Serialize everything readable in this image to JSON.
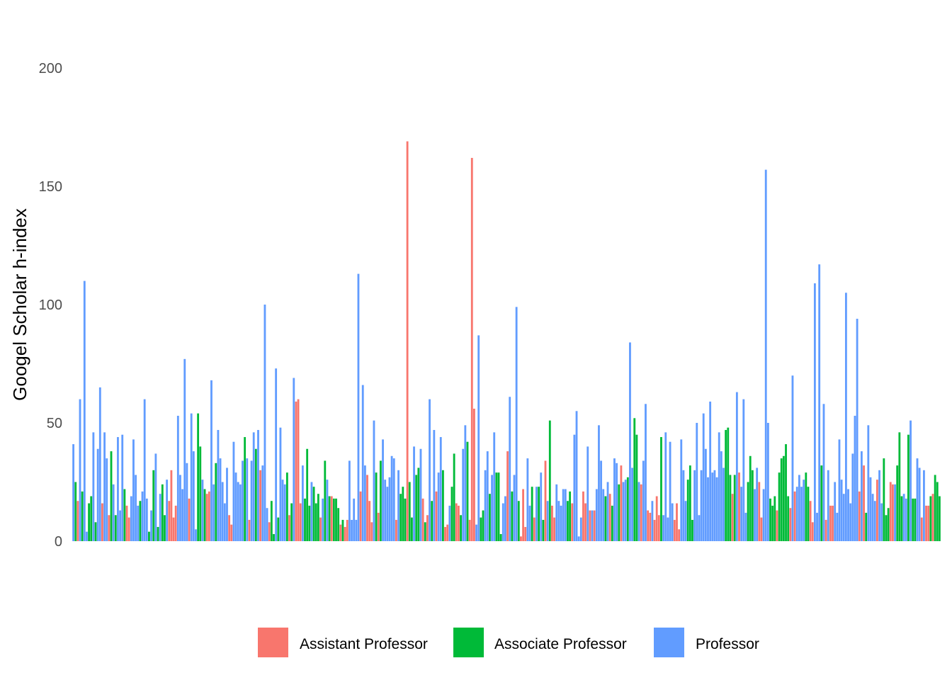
{
  "chart_data": {
    "type": "bar",
    "title": "",
    "xlabel": "",
    "ylabel": "Googel Scholar h-index",
    "ylim": [
      0,
      200
    ],
    "yticks": [
      0,
      50,
      100,
      150,
      200
    ],
    "grid": false,
    "legend_position": "bottom",
    "series": [
      {
        "name": "Assistant Professor",
        "color": "#F8766D"
      },
      {
        "name": "Associate Professor",
        "color": "#00BA38"
      },
      {
        "name": "Professor",
        "color": "#619CFF"
      }
    ],
    "bars": [
      [
        2,
        41
      ],
      [
        1,
        25
      ],
      [
        0,
        17
      ],
      [
        2,
        60
      ],
      [
        1,
        21
      ],
      [
        2,
        110
      ],
      [
        2,
        4
      ],
      [
        1,
        16
      ],
      [
        1,
        19
      ],
      [
        2,
        46
      ],
      [
        1,
        8
      ],
      [
        2,
        39
      ],
      [
        2,
        65
      ],
      [
        0,
        16
      ],
      [
        2,
        46
      ],
      [
        2,
        35
      ],
      [
        0,
        11
      ],
      [
        1,
        38
      ],
      [
        2,
        24
      ],
      [
        1,
        11
      ],
      [
        2,
        44
      ],
      [
        2,
        13
      ],
      [
        2,
        45
      ],
      [
        1,
        22
      ],
      [
        0,
        15
      ],
      [
        0,
        10
      ],
      [
        2,
        19
      ],
      [
        2,
        43
      ],
      [
        2,
        28
      ],
      [
        2,
        15
      ],
      [
        1,
        17
      ],
      [
        2,
        21
      ],
      [
        2,
        60
      ],
      [
        2,
        18
      ],
      [
        1,
        4
      ],
      [
        2,
        13
      ],
      [
        1,
        30
      ],
      [
        2,
        37
      ],
      [
        1,
        6
      ],
      [
        2,
        20
      ],
      [
        1,
        24
      ],
      [
        1,
        11
      ],
      [
        2,
        26
      ],
      [
        0,
        17
      ],
      [
        0,
        30
      ],
      [
        0,
        10
      ],
      [
        0,
        15
      ],
      [
        2,
        53
      ],
      [
        2,
        28
      ],
      [
        2,
        22
      ],
      [
        2,
        77
      ],
      [
        2,
        33
      ],
      [
        0,
        18
      ],
      [
        2,
        54
      ],
      [
        2,
        38
      ],
      [
        2,
        5
      ],
      [
        1,
        54
      ],
      [
        1,
        40
      ],
      [
        2,
        26
      ],
      [
        1,
        22
      ],
      [
        0,
        20
      ],
      [
        0,
        21
      ],
      [
        2,
        68
      ],
      [
        2,
        24
      ],
      [
        1,
        33
      ],
      [
        2,
        47
      ],
      [
        2,
        35
      ],
      [
        2,
        25
      ],
      [
        2,
        16
      ],
      [
        2,
        31
      ],
      [
        0,
        11
      ],
      [
        0,
        7
      ],
      [
        2,
        42
      ],
      [
        2,
        29
      ],
      [
        2,
        25
      ],
      [
        2,
        24
      ],
      [
        2,
        34
      ],
      [
        1,
        44
      ],
      [
        2,
        35
      ],
      [
        0,
        9
      ],
      [
        2,
        34
      ],
      [
        2,
        46
      ],
      [
        1,
        39
      ],
      [
        2,
        47
      ],
      [
        0,
        30
      ],
      [
        2,
        32
      ],
      [
        2,
        100
      ],
      [
        2,
        14
      ],
      [
        0,
        8
      ],
      [
        1,
        17
      ],
      [
        1,
        3
      ],
      [
        2,
        73
      ],
      [
        1,
        10
      ],
      [
        2,
        48
      ],
      [
        2,
        26
      ],
      [
        2,
        24
      ],
      [
        1,
        29
      ],
      [
        0,
        11
      ],
      [
        1,
        16
      ],
      [
        2,
        69
      ],
      [
        0,
        59
      ],
      [
        0,
        60
      ],
      [
        0,
        16
      ],
      [
        2,
        32
      ],
      [
        1,
        18
      ],
      [
        1,
        39
      ],
      [
        1,
        15
      ],
      [
        2,
        25
      ],
      [
        1,
        23
      ],
      [
        1,
        16
      ],
      [
        1,
        20
      ],
      [
        0,
        10
      ],
      [
        2,
        18
      ],
      [
        1,
        34
      ],
      [
        2,
        26
      ],
      [
        1,
        19
      ],
      [
        0,
        19
      ],
      [
        1,
        18
      ],
      [
        1,
        18
      ],
      [
        1,
        14
      ],
      [
        0,
        7
      ],
      [
        1,
        9
      ],
      [
        0,
        6
      ],
      [
        0,
        9
      ],
      [
        2,
        34
      ],
      [
        2,
        9
      ],
      [
        2,
        18
      ],
      [
        2,
        9
      ],
      [
        2,
        113
      ],
      [
        0,
        21
      ],
      [
        2,
        66
      ],
      [
        2,
        32
      ],
      [
        0,
        28
      ],
      [
        0,
        17
      ],
      [
        0,
        8
      ],
      [
        2,
        51
      ],
      [
        1,
        29
      ],
      [
        0,
        12
      ],
      [
        1,
        34
      ],
      [
        2,
        43
      ],
      [
        2,
        26
      ],
      [
        2,
        23
      ],
      [
        2,
        27
      ],
      [
        2,
        36
      ],
      [
        2,
        35
      ],
      [
        0,
        9
      ],
      [
        2,
        30
      ],
      [
        1,
        20
      ],
      [
        1,
        23
      ],
      [
        1,
        18
      ],
      [
        0,
        169
      ],
      [
        1,
        25
      ],
      [
        1,
        10
      ],
      [
        2,
        40
      ],
      [
        1,
        28
      ],
      [
        1,
        31
      ],
      [
        2,
        39
      ],
      [
        0,
        18
      ],
      [
        1,
        8
      ],
      [
        0,
        11
      ],
      [
        2,
        60
      ],
      [
        1,
        17
      ],
      [
        2,
        47
      ],
      [
        0,
        21
      ],
      [
        2,
        29
      ],
      [
        2,
        44
      ],
      [
        1,
        30
      ],
      [
        0,
        6
      ],
      [
        0,
        7
      ],
      [
        2,
        15
      ],
      [
        1,
        23
      ],
      [
        1,
        37
      ],
      [
        0,
        16
      ],
      [
        0,
        15
      ],
      [
        1,
        11
      ],
      [
        2,
        39
      ],
      [
        2,
        49
      ],
      [
        1,
        42
      ],
      [
        0,
        9
      ],
      [
        0,
        162
      ],
      [
        0,
        56
      ],
      [
        2,
        7
      ],
      [
        2,
        87
      ],
      [
        1,
        10
      ],
      [
        1,
        13
      ],
      [
        2,
        30
      ],
      [
        2,
        38
      ],
      [
        1,
        20
      ],
      [
        2,
        28
      ],
      [
        2,
        46
      ],
      [
        1,
        29
      ],
      [
        1,
        29
      ],
      [
        1,
        3
      ],
      [
        2,
        16
      ],
      [
        2,
        19
      ],
      [
        0,
        38
      ],
      [
        2,
        61
      ],
      [
        1,
        21
      ],
      [
        2,
        28
      ],
      [
        2,
        99
      ],
      [
        1,
        17
      ],
      [
        0,
        2
      ],
      [
        0,
        22
      ],
      [
        0,
        6
      ],
      [
        2,
        35
      ],
      [
        2,
        15
      ],
      [
        1,
        23
      ],
      [
        0,
        10
      ],
      [
        2,
        23
      ],
      [
        1,
        23
      ],
      [
        2,
        29
      ],
      [
        1,
        9
      ],
      [
        0,
        34
      ],
      [
        2,
        17
      ],
      [
        1,
        51
      ],
      [
        0,
        15
      ],
      [
        0,
        10
      ],
      [
        2,
        24
      ],
      [
        2,
        17
      ],
      [
        2,
        15
      ],
      [
        2,
        22
      ],
      [
        2,
        22
      ],
      [
        1,
        17
      ],
      [
        1,
        21
      ],
      [
        0,
        16
      ],
      [
        2,
        45
      ],
      [
        2,
        55
      ],
      [
        2,
        2
      ],
      [
        2,
        10
      ],
      [
        0,
        21
      ],
      [
        0,
        16
      ],
      [
        2,
        40
      ],
      [
        0,
        13
      ],
      [
        2,
        13
      ],
      [
        0,
        13
      ],
      [
        2,
        22
      ],
      [
        2,
        49
      ],
      [
        2,
        34
      ],
      [
        2,
        22
      ],
      [
        1,
        19
      ],
      [
        2,
        25
      ],
      [
        0,
        20
      ],
      [
        1,
        15
      ],
      [
        2,
        35
      ],
      [
        2,
        33
      ],
      [
        1,
        24
      ],
      [
        0,
        32
      ],
      [
        2,
        25
      ],
      [
        2,
        26
      ],
      [
        1,
        27
      ],
      [
        2,
        84
      ],
      [
        2,
        31
      ],
      [
        1,
        52
      ],
      [
        1,
        45
      ],
      [
        2,
        25
      ],
      [
        0,
        24
      ],
      [
        2,
        34
      ],
      [
        2,
        58
      ],
      [
        0,
        13
      ],
      [
        0,
        12
      ],
      [
        2,
        17
      ],
      [
        0,
        9
      ],
      [
        0,
        19
      ],
      [
        0,
        11
      ],
      [
        1,
        44
      ],
      [
        2,
        11
      ],
      [
        2,
        46
      ],
      [
        2,
        10
      ],
      [
        2,
        42
      ],
      [
        2,
        16
      ],
      [
        0,
        9
      ],
      [
        0,
        16
      ],
      [
        0,
        5
      ],
      [
        2,
        43
      ],
      [
        2,
        30
      ],
      [
        2,
        17
      ],
      [
        1,
        26
      ],
      [
        1,
        32
      ],
      [
        1,
        9
      ],
      [
        2,
        30
      ],
      [
        2,
        50
      ],
      [
        2,
        11
      ],
      [
        2,
        30
      ],
      [
        2,
        54
      ],
      [
        2,
        39
      ],
      [
        2,
        27
      ],
      [
        2,
        59
      ],
      [
        2,
        29
      ],
      [
        2,
        30
      ],
      [
        2,
        27
      ],
      [
        2,
        46
      ],
      [
        2,
        38
      ],
      [
        2,
        31
      ],
      [
        1,
        47
      ],
      [
        1,
        48
      ],
      [
        1,
        28
      ],
      [
        0,
        20
      ],
      [
        1,
        28
      ],
      [
        2,
        63
      ],
      [
        0,
        29
      ],
      [
        2,
        23
      ],
      [
        2,
        60
      ],
      [
        2,
        12
      ],
      [
        1,
        25
      ],
      [
        1,
        36
      ],
      [
        1,
        30
      ],
      [
        2,
        22
      ],
      [
        2,
        31
      ],
      [
        0,
        25
      ],
      [
        0,
        10
      ],
      [
        2,
        22
      ],
      [
        2,
        157
      ],
      [
        2,
        50
      ],
      [
        1,
        18
      ],
      [
        1,
        15
      ],
      [
        1,
        19
      ],
      [
        0,
        13
      ],
      [
        1,
        29
      ],
      [
        1,
        35
      ],
      [
        1,
        36
      ],
      [
        1,
        41
      ],
      [
        1,
        19
      ],
      [
        0,
        14
      ],
      [
        2,
        70
      ],
      [
        0,
        21
      ],
      [
        2,
        23
      ],
      [
        2,
        28
      ],
      [
        2,
        23
      ],
      [
        2,
        26
      ],
      [
        1,
        29
      ],
      [
        1,
        23
      ],
      [
        0,
        17
      ],
      [
        0,
        8
      ],
      [
        2,
        109
      ],
      [
        2,
        12
      ],
      [
        2,
        117
      ],
      [
        1,
        32
      ],
      [
        2,
        58
      ],
      [
        0,
        9
      ],
      [
        2,
        30
      ],
      [
        0,
        15
      ],
      [
        0,
        15
      ],
      [
        2,
        25
      ],
      [
        2,
        12
      ],
      [
        2,
        43
      ],
      [
        2,
        26
      ],
      [
        2,
        20
      ],
      [
        2,
        105
      ],
      [
        2,
        22
      ],
      [
        2,
        16
      ],
      [
        2,
        37
      ],
      [
        2,
        53
      ],
      [
        2,
        94
      ],
      [
        0,
        21
      ],
      [
        2,
        38
      ],
      [
        0,
        32
      ],
      [
        1,
        12
      ],
      [
        2,
        49
      ],
      [
        2,
        27
      ],
      [
        2,
        20
      ],
      [
        2,
        17
      ],
      [
        0,
        26
      ],
      [
        2,
        30
      ],
      [
        2,
        16
      ],
      [
        1,
        35
      ],
      [
        1,
        11
      ],
      [
        1,
        14
      ],
      [
        0,
        25
      ],
      [
        0,
        24
      ],
      [
        2,
        24
      ],
      [
        1,
        32
      ],
      [
        1,
        46
      ],
      [
        1,
        19
      ],
      [
        2,
        20
      ],
      [
        2,
        18
      ],
      [
        1,
        45
      ],
      [
        2,
        51
      ],
      [
        1,
        18
      ],
      [
        1,
        18
      ],
      [
        2,
        35
      ],
      [
        2,
        31
      ],
      [
        0,
        10
      ],
      [
        2,
        30
      ],
      [
        0,
        15
      ],
      [
        0,
        15
      ],
      [
        1,
        19
      ],
      [
        0,
        20
      ],
      [
        1,
        28
      ],
      [
        1,
        25
      ],
      [
        1,
        19
      ]
    ]
  }
}
